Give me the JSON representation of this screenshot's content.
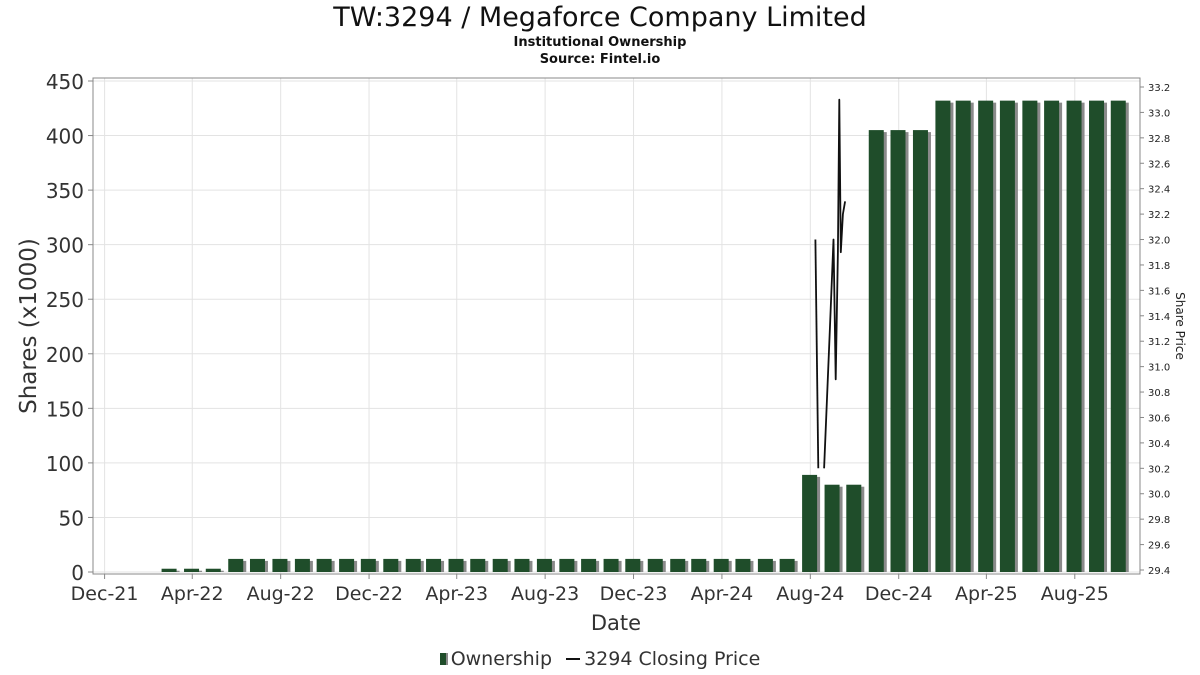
{
  "header": {
    "title": "TW:3294 / Megaforce Company Limited",
    "subtitle": "Institutional Ownership",
    "source": "Source: Fintel.io"
  },
  "legend": {
    "ownership": "Ownership",
    "price": "3294 Closing Price"
  },
  "colors": {
    "bar": "#1f4d2a",
    "bar_shadow": "#8a8a8a",
    "price_line": "#111111",
    "grid": "#e3e3e3"
  },
  "chart_data": {
    "type": "bar",
    "title": "TW:3294 / Megaforce Company Limited",
    "xlabel": "Date",
    "ylabel": "Shares (x1000)",
    "y2label": "Share Price",
    "xlim": [
      "2021-11-15",
      "2025-10-30"
    ],
    "ylim": [
      0,
      450
    ],
    "y2lim": [
      29.4,
      33.2
    ],
    "grid": true,
    "legend_position": "bottom",
    "x_tick_labels": [
      {
        "date": "2021-12-01",
        "label": "Dec-21"
      },
      {
        "date": "2022-04-01",
        "label": "Apr-22"
      },
      {
        "date": "2022-08-01",
        "label": "Aug-22"
      },
      {
        "date": "2022-12-01",
        "label": "Dec-22"
      },
      {
        "date": "2023-04-01",
        "label": "Apr-23"
      },
      {
        "date": "2023-08-01",
        "label": "Aug-23"
      },
      {
        "date": "2023-12-01",
        "label": "Dec-23"
      },
      {
        "date": "2024-04-01",
        "label": "Apr-24"
      },
      {
        "date": "2024-08-01",
        "label": "Aug-24"
      },
      {
        "date": "2024-12-01",
        "label": "Dec-24"
      },
      {
        "date": "2025-04-01",
        "label": "Apr-25"
      },
      {
        "date": "2025-08-01",
        "label": "Aug-25"
      }
    ],
    "y_ticks": [
      0,
      50,
      100,
      150,
      200,
      250,
      300,
      350,
      400,
      450
    ],
    "y2_ticks": [
      "29.4",
      "29.6",
      "29.8",
      "30.0",
      "30.2",
      "30.4",
      "30.6",
      "30.8",
      "31.0",
      "31.2",
      "31.4",
      "31.6",
      "31.8",
      "32.0",
      "32.2",
      "32.4",
      "32.6",
      "32.8",
      "33.0",
      "33.2"
    ],
    "series": [
      {
        "name": "Ownership",
        "type": "bar",
        "axis": "left",
        "x": [
          "2022-02-28",
          "2022-03-31",
          "2022-04-30",
          "2022-05-31",
          "2022-06-30",
          "2022-07-31",
          "2022-08-31",
          "2022-09-30",
          "2022-10-31",
          "2022-11-30",
          "2022-12-31",
          "2023-01-31",
          "2023-02-28",
          "2023-03-31",
          "2023-04-30",
          "2023-05-31",
          "2023-06-30",
          "2023-07-31",
          "2023-08-31",
          "2023-09-30",
          "2023-10-31",
          "2023-11-30",
          "2023-12-31",
          "2024-01-31",
          "2024-02-29",
          "2024-03-31",
          "2024-04-30",
          "2024-05-31",
          "2024-06-30",
          "2024-07-31",
          "2024-08-31",
          "2024-09-30",
          "2024-10-31",
          "2024-11-30",
          "2024-12-31",
          "2025-01-31",
          "2025-02-28",
          "2025-03-31",
          "2025-04-30",
          "2025-05-31",
          "2025-06-30",
          "2025-07-31",
          "2025-08-31",
          "2025-09-30"
        ],
        "values": [
          3,
          3,
          3,
          12,
          12,
          12,
          12,
          12,
          12,
          12,
          12,
          12,
          12,
          12,
          12,
          12,
          12,
          12,
          12,
          12,
          12,
          12,
          12,
          12,
          12,
          12,
          12,
          12,
          12,
          89,
          80,
          80,
          405,
          405,
          405,
          432,
          432,
          432,
          432,
          432,
          432,
          432,
          432,
          432
        ]
      },
      {
        "name": "3294 Closing Price",
        "type": "line",
        "axis": "right",
        "segments": [
          {
            "x": [
              "2024-08-08",
              "2024-08-12"
            ],
            "values": [
              32.0,
              30.2
            ]
          },
          {
            "x": [
              "2024-08-20",
              "2024-08-28",
              "2024-09-02",
              "2024-09-05",
              "2024-09-08",
              "2024-09-10",
              "2024-09-12",
              "2024-09-15",
              "2024-09-18"
            ],
            "values": [
              30.2,
              31.3,
              32.0,
              30.9,
              31.9,
              33.1,
              31.9,
              32.2,
              32.3
            ]
          }
        ]
      }
    ]
  }
}
